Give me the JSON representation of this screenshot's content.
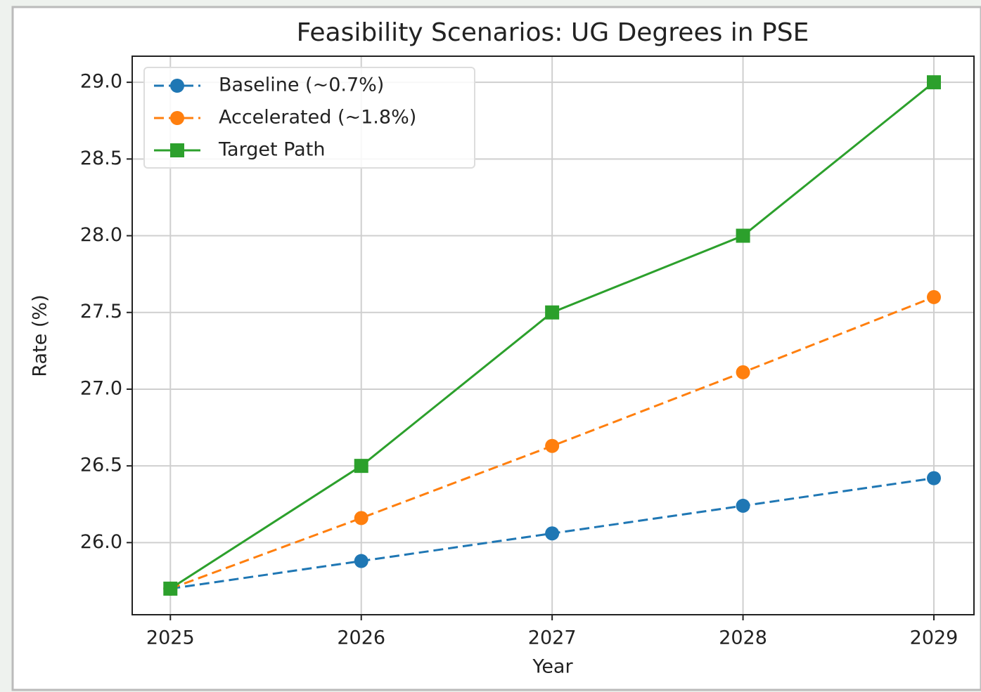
{
  "chart_data": {
    "type": "line",
    "title": "Feasibility Scenarios: UG Degrees in PSE",
    "x_label": "Year",
    "y_label": "Rate (%)",
    "x": [
      2025,
      2026,
      2027,
      2028,
      2029
    ],
    "series": [
      {
        "name": "Baseline (~0.7%)",
        "color": "#1f77b4",
        "linestyle": "dashed",
        "marker": "circle",
        "values": [
          25.7,
          25.88,
          26.06,
          26.24,
          26.42
        ]
      },
      {
        "name": "Accelerated (~1.8%)",
        "color": "#ff7f0e",
        "linestyle": "dashed",
        "marker": "circle",
        "values": [
          25.7,
          26.16,
          26.63,
          27.11,
          27.6
        ]
      },
      {
        "name": "Target Path",
        "color": "#2ca02c",
        "linestyle": "solid",
        "marker": "square",
        "values": [
          25.7,
          26.5,
          27.5,
          28.0,
          29.0
        ]
      }
    ],
    "xlim": [
      2024.8,
      2029.21
    ],
    "xticks": [
      2025,
      2026,
      2027,
      2028,
      2029
    ],
    "ylim": [
      25.53,
      29.17
    ],
    "yticks": [
      {
        "value": 26,
        "label": "26.0"
      },
      {
        "value": 26.5,
        "label": "26.5"
      },
      {
        "value": 27,
        "label": "27.0"
      },
      {
        "value": 27.5,
        "label": "27.5"
      },
      {
        "value": 28,
        "label": "28.0"
      },
      {
        "value": 28.5,
        "label": "28.5"
      },
      {
        "value": 29,
        "label": "29.0"
      }
    ],
    "grid": true,
    "legend": "upper left"
  }
}
